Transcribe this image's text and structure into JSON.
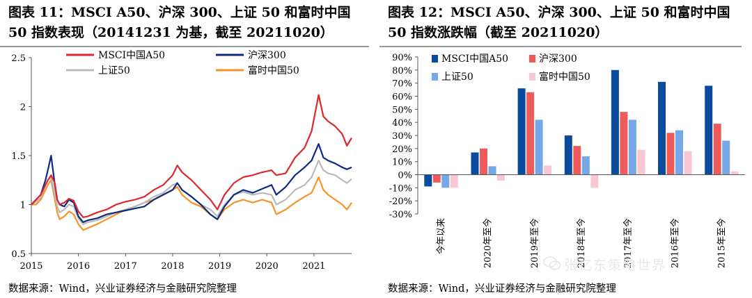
{
  "charts": {
    "left": {
      "title": "图表 11：MSCI A50、沪深 300、上证 50 和富时中国 50 指数表现（20141231 为基，截至 20211020）",
      "source": "数据来源：Wind，兴业证券经济与金融研究院整理"
    },
    "right": {
      "title": "图表 12：MSCI A50、沪深 300、上证 50 和富时中国 50 指数涨跌幅（截至 20211020）",
      "source": "数据来源：Wind，兴业证券经济与金融研究院整理"
    }
  },
  "watermark": "张忆东策略世界",
  "chart_data": [
    {
      "type": "line",
      "title": "图表 11：MSCI A50、沪深 300、上证 50 和富时中国 50 指数表现（20141231 为基，截至 20211020）",
      "xlabel": "",
      "ylabel": "",
      "xlim": [
        2015.0,
        2021.8
      ],
      "ylim": [
        0.5,
        2.5
      ],
      "yticks": [
        "0.5",
        "1",
        "1.5",
        "2",
        "2.5"
      ],
      "xticks": [
        "2015",
        "2016",
        "2017",
        "2018",
        "2019",
        "2020",
        "2021"
      ],
      "legend": "top-center",
      "x": [
        2015.0,
        2015.1,
        2015.2,
        2015.3,
        2015.35,
        2015.42,
        2015.5,
        2015.55,
        2015.6,
        2015.7,
        2015.8,
        2015.9,
        2016.0,
        2016.1,
        2016.2,
        2016.4,
        2016.6,
        2016.8,
        2017.0,
        2017.2,
        2017.4,
        2017.6,
        2017.8,
        2018.0,
        2018.1,
        2018.2,
        2018.4,
        2018.6,
        2018.8,
        2018.95,
        2019.1,
        2019.3,
        2019.5,
        2019.7,
        2019.9,
        2020.1,
        2020.2,
        2020.4,
        2020.6,
        2020.8,
        2020.95,
        2021.1,
        2021.2,
        2021.3,
        2021.45,
        2021.6,
        2021.7,
        2021.8
      ],
      "series": [
        {
          "name": "MSCI中国A50",
          "color": "#e0262b",
          "values": [
            1.0,
            1.05,
            1.1,
            1.2,
            1.25,
            1.3,
            1.22,
            1.05,
            1.0,
            1.02,
            1.06,
            1.04,
            0.93,
            0.87,
            0.88,
            0.92,
            0.95,
            1.0,
            1.03,
            1.05,
            1.08,
            1.15,
            1.2,
            1.3,
            1.4,
            1.33,
            1.25,
            1.15,
            1.05,
            0.95,
            1.1,
            1.22,
            1.28,
            1.3,
            1.33,
            1.35,
            1.3,
            1.32,
            1.48,
            1.58,
            1.75,
            2.12,
            1.9,
            1.85,
            1.8,
            1.72,
            1.6,
            1.68
          ]
        },
        {
          "name": "沪深300",
          "color": "#0d2a83",
          "values": [
            1.0,
            1.05,
            1.1,
            1.25,
            1.35,
            1.5,
            1.2,
            1.05,
            1.0,
            0.98,
            1.05,
            1.02,
            0.88,
            0.82,
            0.84,
            0.86,
            0.9,
            0.92,
            0.94,
            0.96,
            0.98,
            1.05,
            1.1,
            1.15,
            1.22,
            1.15,
            1.08,
            1.0,
            0.9,
            0.85,
            0.98,
            1.1,
            1.15,
            1.12,
            1.16,
            1.2,
            1.1,
            1.18,
            1.3,
            1.38,
            1.45,
            1.62,
            1.48,
            1.45,
            1.42,
            1.38,
            1.36,
            1.38
          ]
        },
        {
          "name": "上证50",
          "color": "#b9b9b9",
          "values": [
            1.0,
            1.03,
            1.07,
            1.2,
            1.25,
            1.28,
            1.1,
            0.98,
            0.92,
            0.95,
            1.0,
            0.98,
            0.86,
            0.8,
            0.82,
            0.84,
            0.88,
            0.92,
            0.95,
            0.98,
            1.02,
            1.08,
            1.12,
            1.2,
            1.22,
            1.15,
            1.08,
            1.0,
            0.95,
            0.88,
            1.0,
            1.1,
            1.13,
            1.1,
            1.12,
            1.1,
            1.0,
            1.05,
            1.15,
            1.2,
            1.28,
            1.45,
            1.35,
            1.32,
            1.3,
            1.25,
            1.22,
            1.26
          ]
        },
        {
          "name": "富时中国50",
          "color": "#f6922a",
          "values": [
            1.0,
            1.0,
            1.05,
            1.15,
            1.2,
            1.25,
            1.05,
            0.92,
            0.85,
            0.88,
            0.93,
            0.9,
            0.8,
            0.74,
            0.76,
            0.8,
            0.85,
            0.9,
            0.95,
            0.98,
            1.02,
            1.05,
            1.1,
            1.15,
            1.18,
            1.1,
            1.02,
            0.98,
            0.9,
            0.85,
            0.95,
            1.02,
            1.05,
            1.02,
            1.05,
            1.02,
            0.9,
            0.95,
            1.02,
            1.08,
            1.12,
            1.28,
            1.15,
            1.1,
            1.05,
            1.0,
            0.95,
            1.02
          ]
        }
      ]
    },
    {
      "type": "bar",
      "title": "图表 12：MSCI A50、沪深 300、上证 50 和富时中国 50 指数涨跌幅（截至 20211020）",
      "xlabel": "",
      "ylabel": "",
      "ylim": [
        -30,
        90
      ],
      "yticks": [
        "-30%",
        "-20%",
        "-10%",
        "0%",
        "10%",
        "20%",
        "30%",
        "40%",
        "50%",
        "60%",
        "70%",
        "80%",
        "90%"
      ],
      "legend": "top-left",
      "categories": [
        "今年以来",
        "2020年至今",
        "2019年至今",
        "2018年至今",
        "2017年至今",
        "2016年至今",
        "2015年至今"
      ],
      "series": [
        {
          "name": "MSCI中国A50",
          "color": "#0a4b9e",
          "values": [
            -9,
            17,
            66,
            30,
            80,
            71,
            68
          ]
        },
        {
          "name": "沪深300",
          "color": "#ee5b5b",
          "values": [
            -6,
            20,
            63,
            22,
            48,
            32,
            39
          ]
        },
        {
          "name": "上证50",
          "color": "#76a7e6",
          "values": [
            -10,
            6.5,
            42,
            14,
            42,
            34,
            26
          ]
        },
        {
          "name": "富时中国50",
          "color": "#f8c7d3",
          "values": [
            -10,
            -4.5,
            7,
            -10,
            19,
            18,
            2.5
          ]
        }
      ]
    }
  ]
}
